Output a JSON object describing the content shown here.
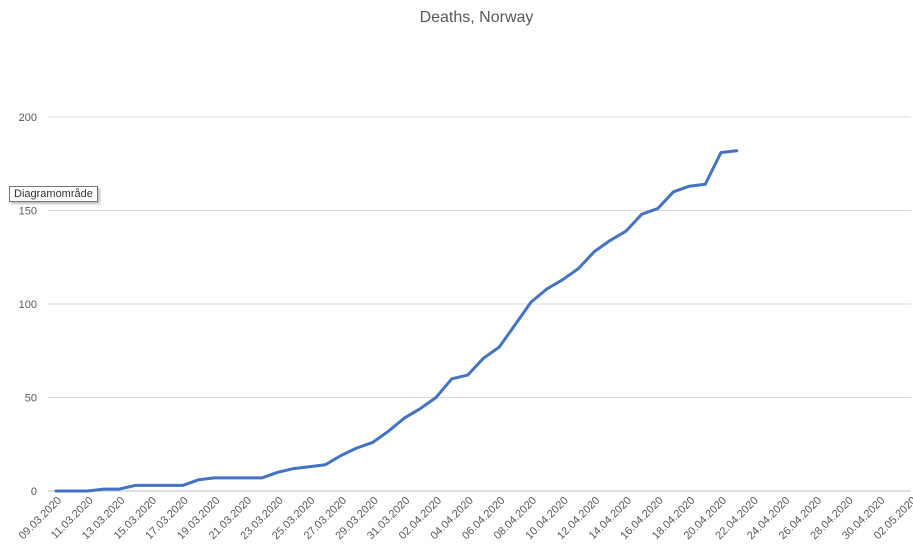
{
  "chart_data": {
    "type": "line",
    "title": "Deaths, Norway",
    "ylim": [
      0,
      200
    ],
    "yticks": [
      0,
      50,
      100,
      150,
      200
    ],
    "grid": true,
    "line_color": "#4472C4",
    "x_tick_labels": [
      "09.03.2020",
      "11.03.2020",
      "13.03.2020",
      "15.03.2020",
      "17.03.2020",
      "19.03.2020",
      "21.03.2020",
      "23.03.2020",
      "25.03.2020",
      "27.03.2020",
      "29.03.2020",
      "31.03.2020",
      "02.04.2020",
      "04.04.2020",
      "06.04.2020",
      "08.04.2020",
      "10.04.2020",
      "12.04.2020",
      "14.04.2020",
      "16.04.2020",
      "18.04.2020",
      "20.04.2020",
      "22.04.2020",
      "24.04.2020",
      "26.04.2020",
      "28.04.2020",
      "30.04.2020",
      "02.05.2020"
    ],
    "x_range": [
      "09.03.2020",
      "02.05.2020"
    ],
    "series": [
      {
        "x": [
          "09.03.2020",
          "10.03.2020",
          "11.03.2020",
          "12.03.2020",
          "13.03.2020",
          "14.03.2020",
          "15.03.2020",
          "16.03.2020",
          "17.03.2020",
          "18.03.2020",
          "19.03.2020",
          "20.03.2020",
          "21.03.2020",
          "22.03.2020",
          "23.03.2020",
          "24.03.2020",
          "25.03.2020",
          "26.03.2020",
          "27.03.2020",
          "28.03.2020",
          "29.03.2020",
          "30.03.2020",
          "31.03.2020",
          "01.04.2020",
          "02.04.2020",
          "03.04.2020",
          "04.04.2020",
          "05.04.2020",
          "06.04.2020",
          "07.04.2020",
          "08.04.2020",
          "09.04.2020",
          "10.04.2020",
          "11.04.2020",
          "12.04.2020",
          "13.04.2020",
          "14.04.2020",
          "15.04.2020",
          "16.04.2020",
          "17.04.2020",
          "18.04.2020",
          "19.04.2020",
          "20.04.2020",
          "21.04.2020"
        ],
        "values": [
          0,
          0,
          0,
          1,
          1,
          3,
          3,
          3,
          3,
          6,
          7,
          7,
          7,
          7,
          10,
          12,
          13,
          14,
          19,
          23,
          26,
          32,
          39,
          44,
          50,
          60,
          62,
          71,
          77,
          89,
          101,
          108,
          113,
          119,
          128,
          134,
          139,
          148,
          151,
          160,
          163,
          164,
          181,
          182
        ]
      }
    ]
  },
  "tooltip": {
    "text": "Diagramområde"
  }
}
